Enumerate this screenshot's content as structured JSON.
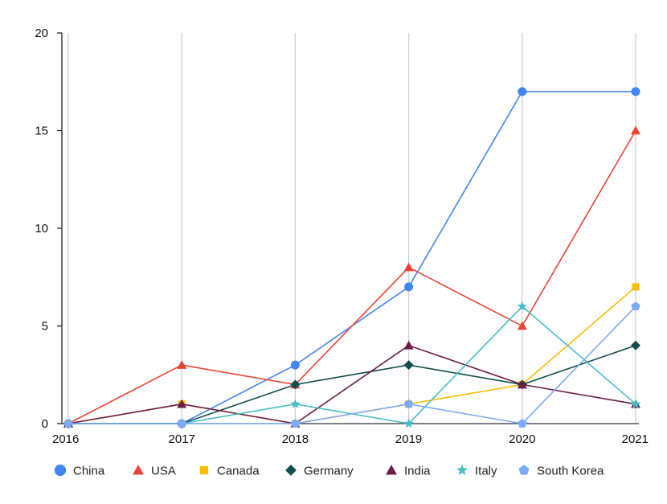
{
  "chart_data": {
    "type": "line",
    "title": "",
    "xlabel": "",
    "ylabel": "",
    "x": [
      "2016",
      "2017",
      "2018",
      "2019",
      "2020",
      "2021"
    ],
    "ylim": [
      0,
      20
    ],
    "yticks": [
      0,
      5,
      10,
      15,
      20
    ],
    "grid": "vertical",
    "legend_position": "bottom",
    "series": [
      {
        "name": "China",
        "color": "#4285f4",
        "marker": "circle",
        "values": [
          0,
          0,
          3,
          7,
          17,
          17
        ]
      },
      {
        "name": "USA",
        "color": "#ea4335",
        "marker": "triangle",
        "values": [
          0,
          3,
          2,
          8,
          5,
          15
        ]
      },
      {
        "name": "Canada",
        "color": "#fbbc04",
        "marker": "square",
        "values": [
          0,
          1,
          0,
          1,
          2,
          7
        ]
      },
      {
        "name": "Germany",
        "color": "#114d4d",
        "marker": "diamond",
        "values": [
          0,
          0,
          2,
          3,
          2,
          4
        ]
      },
      {
        "name": "India",
        "color": "#6b1d46",
        "marker": "triangle",
        "values": [
          0,
          1,
          0,
          4,
          2,
          1
        ]
      },
      {
        "name": "Italy",
        "color": "#46bdc6",
        "marker": "star",
        "values": [
          0,
          0,
          1,
          0,
          6,
          1
        ]
      },
      {
        "name": "South Korea",
        "color": "#7baaf7",
        "marker": "pentagon",
        "values": [
          0,
          0,
          0,
          1,
          0,
          6
        ]
      }
    ]
  }
}
